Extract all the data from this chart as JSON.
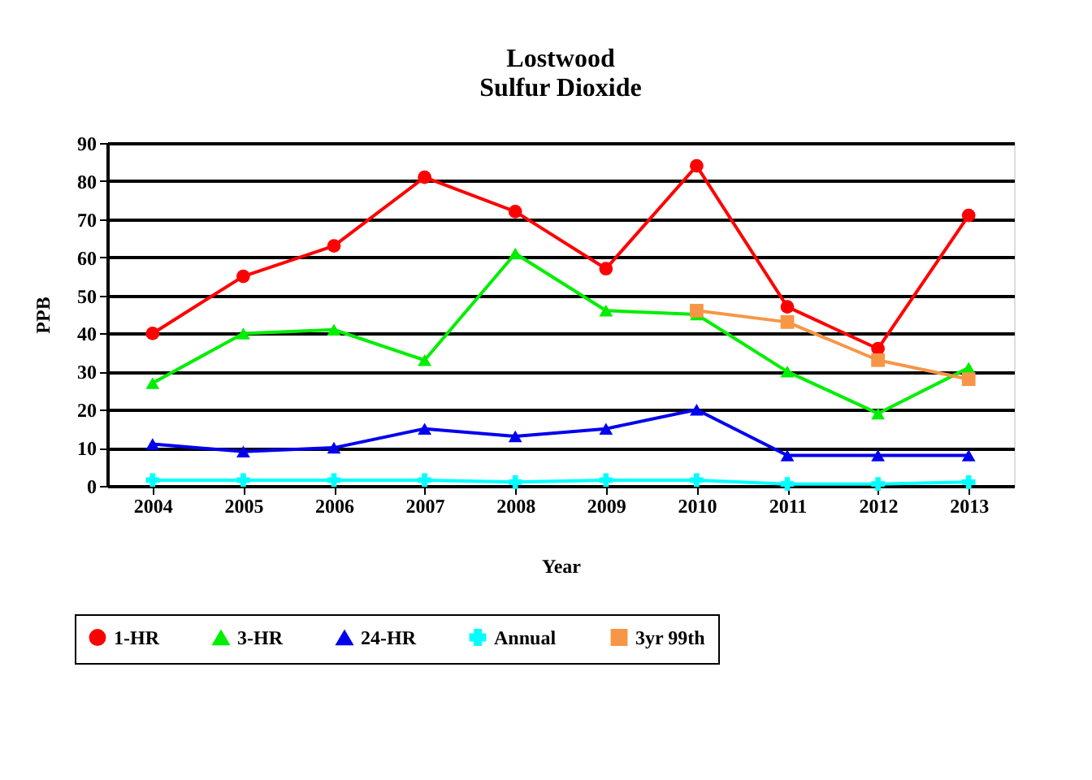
{
  "chart_data": {
    "type": "line",
    "title": "Lostwood",
    "subtitle": "Sulfur Dioxide",
    "xlabel": "Year",
    "ylabel": "PPB",
    "categories": [
      "2004",
      "2005",
      "2006",
      "2007",
      "2008",
      "2009",
      "2010",
      "2011",
      "2012",
      "2013"
    ],
    "ylim": [
      0,
      90
    ],
    "yticks": [
      0,
      10,
      20,
      30,
      40,
      50,
      60,
      70,
      80,
      90
    ],
    "grid": "y",
    "legend": "bottom",
    "line_style": "solid",
    "series": [
      {
        "name": "1-HR",
        "color": "#ff0000",
        "marker": "circle",
        "values": [
          40,
          55,
          63,
          81,
          72,
          57,
          84,
          47,
          36,
          71
        ]
      },
      {
        "name": "3-HR",
        "color": "#00ee00",
        "marker": "triangle",
        "values": [
          27,
          40,
          41,
          33,
          61,
          46,
          45,
          30,
          19,
          31
        ]
      },
      {
        "name": "24-HR",
        "color": "#0000ee",
        "marker": "triangle",
        "values": [
          11,
          9,
          10,
          15,
          13,
          15,
          20,
          8,
          8,
          8
        ]
      },
      {
        "name": "Annual",
        "color": "#00ffff",
        "marker": "cross",
        "values": [
          1.5,
          1.5,
          1.5,
          1.5,
          1,
          1.5,
          1.5,
          0.5,
          0.5,
          1
        ]
      },
      {
        "name": "3yr 99th",
        "color": "#f79646",
        "marker": "square",
        "values": [
          null,
          null,
          null,
          null,
          null,
          null,
          46,
          43,
          33,
          28
        ]
      }
    ]
  }
}
